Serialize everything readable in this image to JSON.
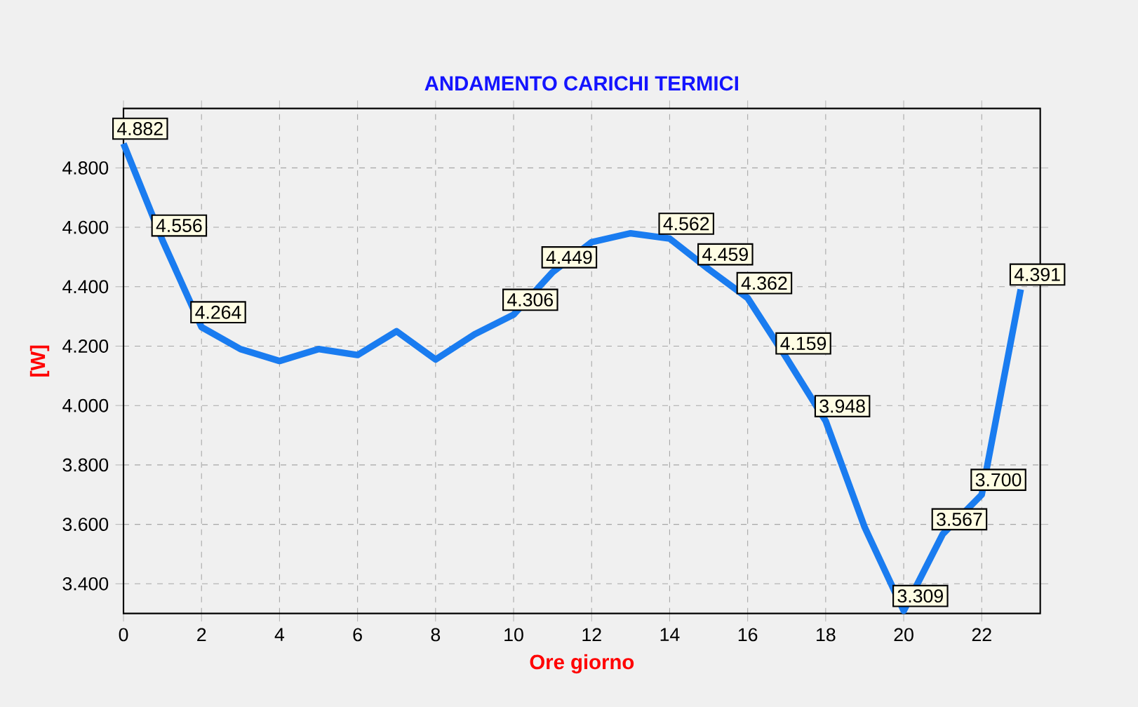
{
  "chart_data": {
    "type": "line",
    "title": "ANDAMENTO CARICHI TERMICI",
    "xlabel": "Ore giorno",
    "ylabel": "[W]",
    "x": [
      0,
      1,
      2,
      3,
      4,
      5,
      6,
      7,
      8,
      9,
      10,
      11,
      12,
      13,
      14,
      15,
      16,
      17,
      18,
      19,
      20,
      21,
      22,
      23
    ],
    "series": [
      {
        "color": "#1a7cf0",
        "values": [
          4.882,
          4.556,
          4.264,
          4.19,
          4.15,
          4.19,
          4.17,
          4.25,
          4.155,
          4.24,
          4.306,
          4.449,
          4.55,
          4.58,
          4.562,
          4.459,
          4.362,
          4.159,
          3.948,
          3.59,
          3.309,
          3.567,
          3.7,
          4.391
        ]
      }
    ],
    "value_labels": [
      "4.882",
      "4.556",
      "4.264",
      null,
      null,
      null,
      null,
      null,
      null,
      null,
      "4.306",
      "4.449",
      null,
      null,
      "4.562",
      "4.459",
      "4.362",
      "4.159",
      "3.948",
      null,
      "3.309",
      "3.567",
      "3.700",
      "4.391"
    ],
    "xlim": [
      0,
      23.5
    ],
    "ylim": [
      3.3,
      5.0
    ],
    "xticks": [
      0,
      2,
      4,
      6,
      8,
      10,
      12,
      14,
      16,
      18,
      20,
      22
    ],
    "yticks": [
      {
        "value": 3.4,
        "label": "3.400"
      },
      {
        "value": 3.6,
        "label": "3.600"
      },
      {
        "value": 3.8,
        "label": "3.800"
      },
      {
        "value": 4.0,
        "label": "4.000"
      },
      {
        "value": 4.2,
        "label": "4.200"
      },
      {
        "value": 4.4,
        "label": "4.400"
      },
      {
        "value": 4.6,
        "label": "4.600"
      },
      {
        "value": 4.8,
        "label": "4.800"
      }
    ],
    "grid": true,
    "marker": "none",
    "line_style": "solid"
  }
}
